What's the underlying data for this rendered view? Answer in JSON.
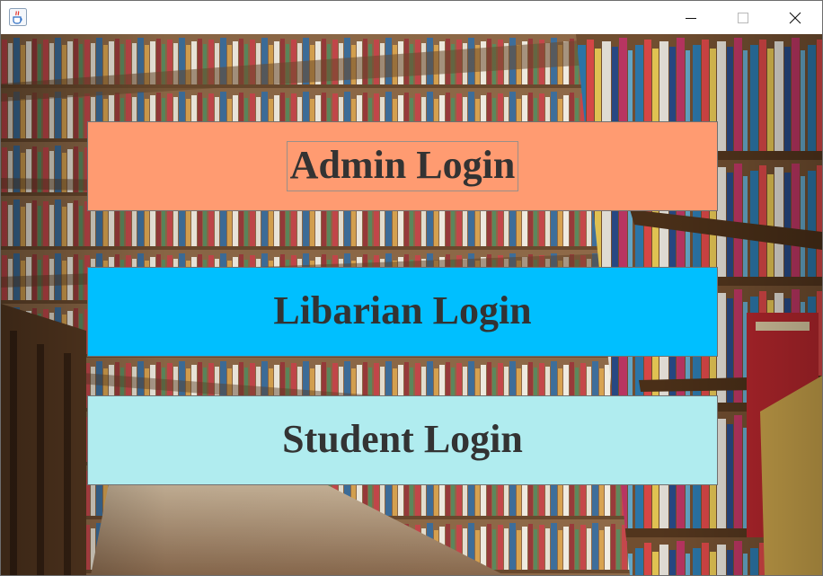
{
  "titlebar": {
    "app_icon": "java-cup-icon",
    "controls": {
      "minimize_icon": "minimize-icon",
      "maximize_icon": "maximize-icon",
      "close_icon": "close-icon"
    }
  },
  "background": {
    "image": "library-bookshelves-photo"
  },
  "buttons": {
    "admin": {
      "label": "Admin Login",
      "color": "#ff9b71"
    },
    "librarian": {
      "label": "Libarian Login",
      "color": "#00bfff"
    },
    "student": {
      "label": "Student Login",
      "color": "#b0ecef"
    }
  },
  "colors": {
    "button_text": "#333333"
  }
}
